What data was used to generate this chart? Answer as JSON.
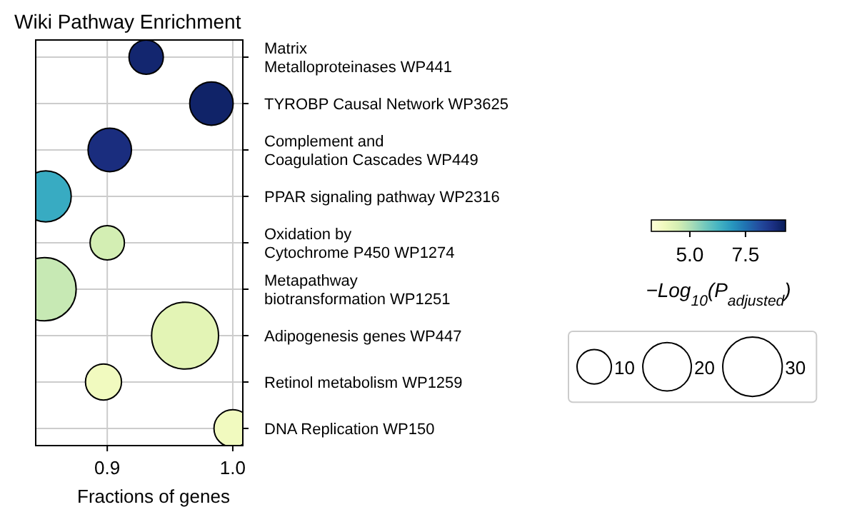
{
  "chart_data": {
    "type": "bubble",
    "title": "Wiki Pathway Enrichment",
    "xlabel": "Fractions of genes",
    "clabel": "−Log$_{10}$(P$_{adjusted}$)",
    "categories": [
      "Matrix\nMetalloproteinases WP441",
      "TYROBP Causal Network WP3625",
      "Complement and\nCoagulation Cascades WP449",
      "PPAR signaling pathway WP2316",
      "Oxidation by\nCytochrome P450 WP1274",
      "Metapathway\nbiotransformation WP1251",
      "Adipogenesis genes WP447",
      "Retinol metabolism WP1259",
      "DNA Replication WP150"
    ],
    "values": [
      0.931,
      0.983,
      0.902,
      0.851,
      0.9,
      0.85,
      0.962,
      0.897,
      1.0
    ],
    "sizes": [
      10,
      16,
      16,
      22,
      10,
      34,
      38,
      11,
      12
    ],
    "cvalues": [
      9.0,
      9.1,
      8.8,
      6.5,
      4.5,
      4.7,
      4.2,
      3.8,
      3.8
    ],
    "clim": [
      3.27,
      9.3
    ],
    "cticks": [
      {
        "value": 5,
        "label": "5.0"
      },
      {
        "value": 7.5,
        "label": "7.5"
      }
    ],
    "size_legend": [
      {
        "value": 10,
        "label": "10"
      },
      {
        "value": 20,
        "label": "20"
      },
      {
        "value": 30,
        "label": "30"
      }
    ],
    "orientation": "horizontal",
    "xlim": [
      0.843,
      1.008
    ],
    "xticks": [
      {
        "value": 0.9,
        "label": "0.9"
      },
      {
        "value": 1.0,
        "label": "1.0"
      }
    ],
    "grid": true
  }
}
